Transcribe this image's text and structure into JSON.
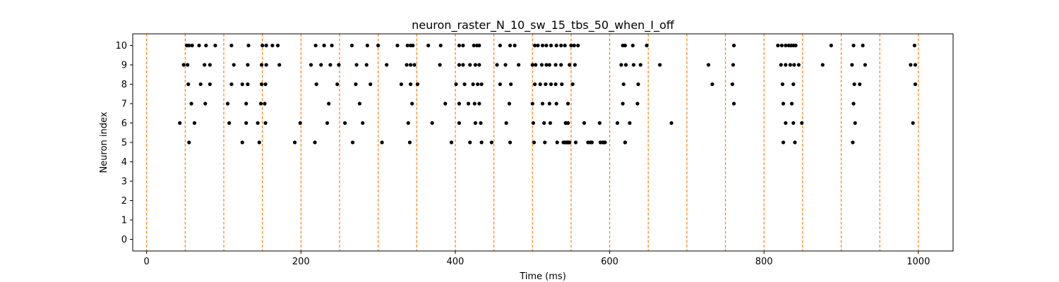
{
  "chart_data": {
    "type": "scatter",
    "title": "neuron_raster_N_10_sw_15_tbs_50_when_I_off",
    "xlabel": "Time (ms)",
    "ylabel": "Neuron index",
    "xlim": [
      -18,
      1045
    ],
    "ylim": [
      -0.6,
      10.6
    ],
    "xticks": [
      0,
      200,
      400,
      600,
      800,
      1000
    ],
    "yticks": [
      0,
      1,
      2,
      3,
      4,
      5,
      6,
      7,
      8,
      9,
      10
    ],
    "grid": false,
    "vlines": {
      "x": [
        0,
        50,
        100,
        150,
        200,
        250,
        300,
        350,
        400,
        450,
        500,
        550,
        600,
        650,
        700,
        750,
        800,
        850,
        900,
        950,
        1000
      ],
      "color": "#ff7f0e",
      "style": "dashed"
    },
    "point_color": "#000000",
    "spikes": [
      {
        "neuron": 10,
        "times": [
          52,
          55,
          59,
          68,
          77,
          89,
          110,
          132,
          150,
          155,
          163,
          170,
          219,
          230,
          240,
          266,
          286,
          300,
          325,
          338,
          342,
          345,
          365,
          381,
          405,
          410,
          424,
          428,
          431,
          458,
          471,
          477,
          503,
          507,
          513,
          518,
          524,
          531,
          537,
          542,
          550,
          554,
          559,
          617,
          620,
          630,
          648,
          761,
          818,
          823,
          828,
          832,
          835,
          838,
          841,
          887,
          916,
          928,
          995
        ]
      },
      {
        "neuron": 9,
        "times": [
          48,
          53,
          75,
          82,
          113,
          131,
          149,
          155,
          172,
          213,
          226,
          238,
          249,
          272,
          285,
          311,
          337,
          342,
          347,
          380,
          405,
          410,
          419,
          426,
          431,
          454,
          465,
          482,
          500,
          504,
          512,
          518,
          522,
          530,
          537,
          548,
          555,
          615,
          621,
          631,
          640,
          665,
          728,
          760,
          822,
          828,
          834,
          839,
          845,
          876,
          914,
          931,
          990,
          996
        ]
      },
      {
        "neuron": 8,
        "times": [
          54,
          70,
          82,
          110,
          124,
          131,
          149,
          154,
          220,
          247,
          271,
          290,
          330,
          342,
          351,
          401,
          412,
          423,
          429,
          434,
          458,
          472,
          503,
          510,
          517,
          524,
          530,
          538,
          552,
          618,
          637,
          733,
          759,
          824,
          838,
          917,
          924,
          996
        ]
      },
      {
        "neuron": 7,
        "times": [
          58,
          76,
          105,
          129,
          148,
          153,
          236,
          276,
          344,
          387,
          405,
          417,
          425,
          431,
          470,
          500,
          513,
          522,
          531,
          546,
          617,
          636,
          761,
          825,
          836,
          916
        ]
      },
      {
        "neuron": 6,
        "times": [
          43,
          62,
          107,
          129,
          144,
          154,
          199,
          234,
          257,
          280,
          339,
          370,
          405,
          426,
          433,
          466,
          501,
          515,
          523,
          543,
          543,
          546,
          546,
          567,
          587,
          610,
          626,
          680,
          828,
          838,
          849,
          918,
          993
        ]
      },
      {
        "neuron": 5,
        "times": [
          55,
          124,
          146,
          192,
          218,
          267,
          305,
          341,
          395,
          419,
          434,
          447,
          471,
          502,
          516,
          532,
          542,
          540,
          542,
          544,
          544,
          545,
          545,
          546,
          547,
          547,
          547,
          548,
          556,
          572,
          575,
          577,
          588,
          591,
          594,
          592,
          620,
          620,
          825,
          840,
          915
        ]
      },
      {
        "neuron": 5,
        "times": []
      }
    ]
  }
}
